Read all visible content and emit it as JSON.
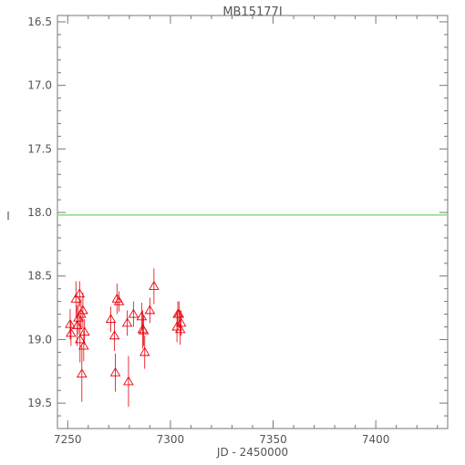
{
  "chart_data": {
    "type": "scatter",
    "title": "MB15177I",
    "xlabel": "JD - 2450000",
    "ylabel": "I",
    "xlim": [
      7245,
      7435
    ],
    "ylim": [
      19.7,
      16.45
    ],
    "y_inverted": true,
    "xticks": [
      "7250",
      "7300",
      "7350",
      "7400"
    ],
    "xtick_values": [
      7250,
      7300,
      7350,
      7400
    ],
    "yticks": [
      "16.5",
      "17.0",
      "17.5",
      "18.0",
      "18.5",
      "19.0",
      "19.5"
    ],
    "ytick_values": [
      16.5,
      17.0,
      17.5,
      18.0,
      18.5,
      19.0,
      19.5
    ],
    "reference_line": {
      "y": 18.02,
      "color": "#44cc44"
    },
    "series": [
      {
        "marker": "triangle",
        "color": "#e8000b",
        "points": [
          {
            "x": 7251.2,
            "y": 18.88,
            "err": 0.12
          },
          {
            "x": 7251.6,
            "y": 18.95,
            "err": 0.1
          },
          {
            "x": 7254.0,
            "y": 18.68,
            "err": 0.14
          },
          {
            "x": 7254.6,
            "y": 18.89,
            "err": 0.16
          },
          {
            "x": 7255.2,
            "y": 18.83,
            "err": 0.13
          },
          {
            "x": 7255.8,
            "y": 18.64,
            "err": 0.1
          },
          {
            "x": 7256.0,
            "y": 19.0,
            "err": 0.18
          },
          {
            "x": 7256.5,
            "y": 18.8,
            "err": 0.12
          },
          {
            "x": 7256.9,
            "y": 19.27,
            "err": 0.22
          },
          {
            "x": 7257.4,
            "y": 18.77,
            "err": 0.14
          },
          {
            "x": 7257.8,
            "y": 19.05,
            "err": 0.12
          },
          {
            "x": 7258.2,
            "y": 18.94,
            "err": 0.1
          },
          {
            "x": 7271.0,
            "y": 18.84,
            "err": 0.1
          },
          {
            "x": 7272.8,
            "y": 18.97,
            "err": 0.12
          },
          {
            "x": 7273.2,
            "y": 19.26,
            "err": 0.15
          },
          {
            "x": 7274.0,
            "y": 18.68,
            "err": 0.12
          },
          {
            "x": 7275.0,
            "y": 18.7,
            "err": 0.08
          },
          {
            "x": 7279.0,
            "y": 18.87,
            "err": 0.1
          },
          {
            "x": 7279.6,
            "y": 19.33,
            "err": 0.2
          },
          {
            "x": 7282.0,
            "y": 18.8,
            "err": 0.1
          },
          {
            "x": 7286.0,
            "y": 18.82,
            "err": 0.11
          },
          {
            "x": 7286.5,
            "y": 18.92,
            "err": 0.15
          },
          {
            "x": 7287.0,
            "y": 18.93,
            "err": 0.12
          },
          {
            "x": 7287.5,
            "y": 19.1,
            "err": 0.13
          },
          {
            "x": 7290.0,
            "y": 18.77,
            "err": 0.1
          },
          {
            "x": 7292.0,
            "y": 18.58,
            "err": 0.14
          },
          {
            "x": 7303.2,
            "y": 18.9,
            "err": 0.12
          },
          {
            "x": 7303.6,
            "y": 18.8,
            "err": 0.1
          },
          {
            "x": 7304.2,
            "y": 18.8,
            "err": 0.1
          },
          {
            "x": 7304.8,
            "y": 18.92,
            "err": 0.12
          },
          {
            "x": 7305.2,
            "y": 18.87,
            "err": 0.1
          }
        ]
      }
    ]
  }
}
